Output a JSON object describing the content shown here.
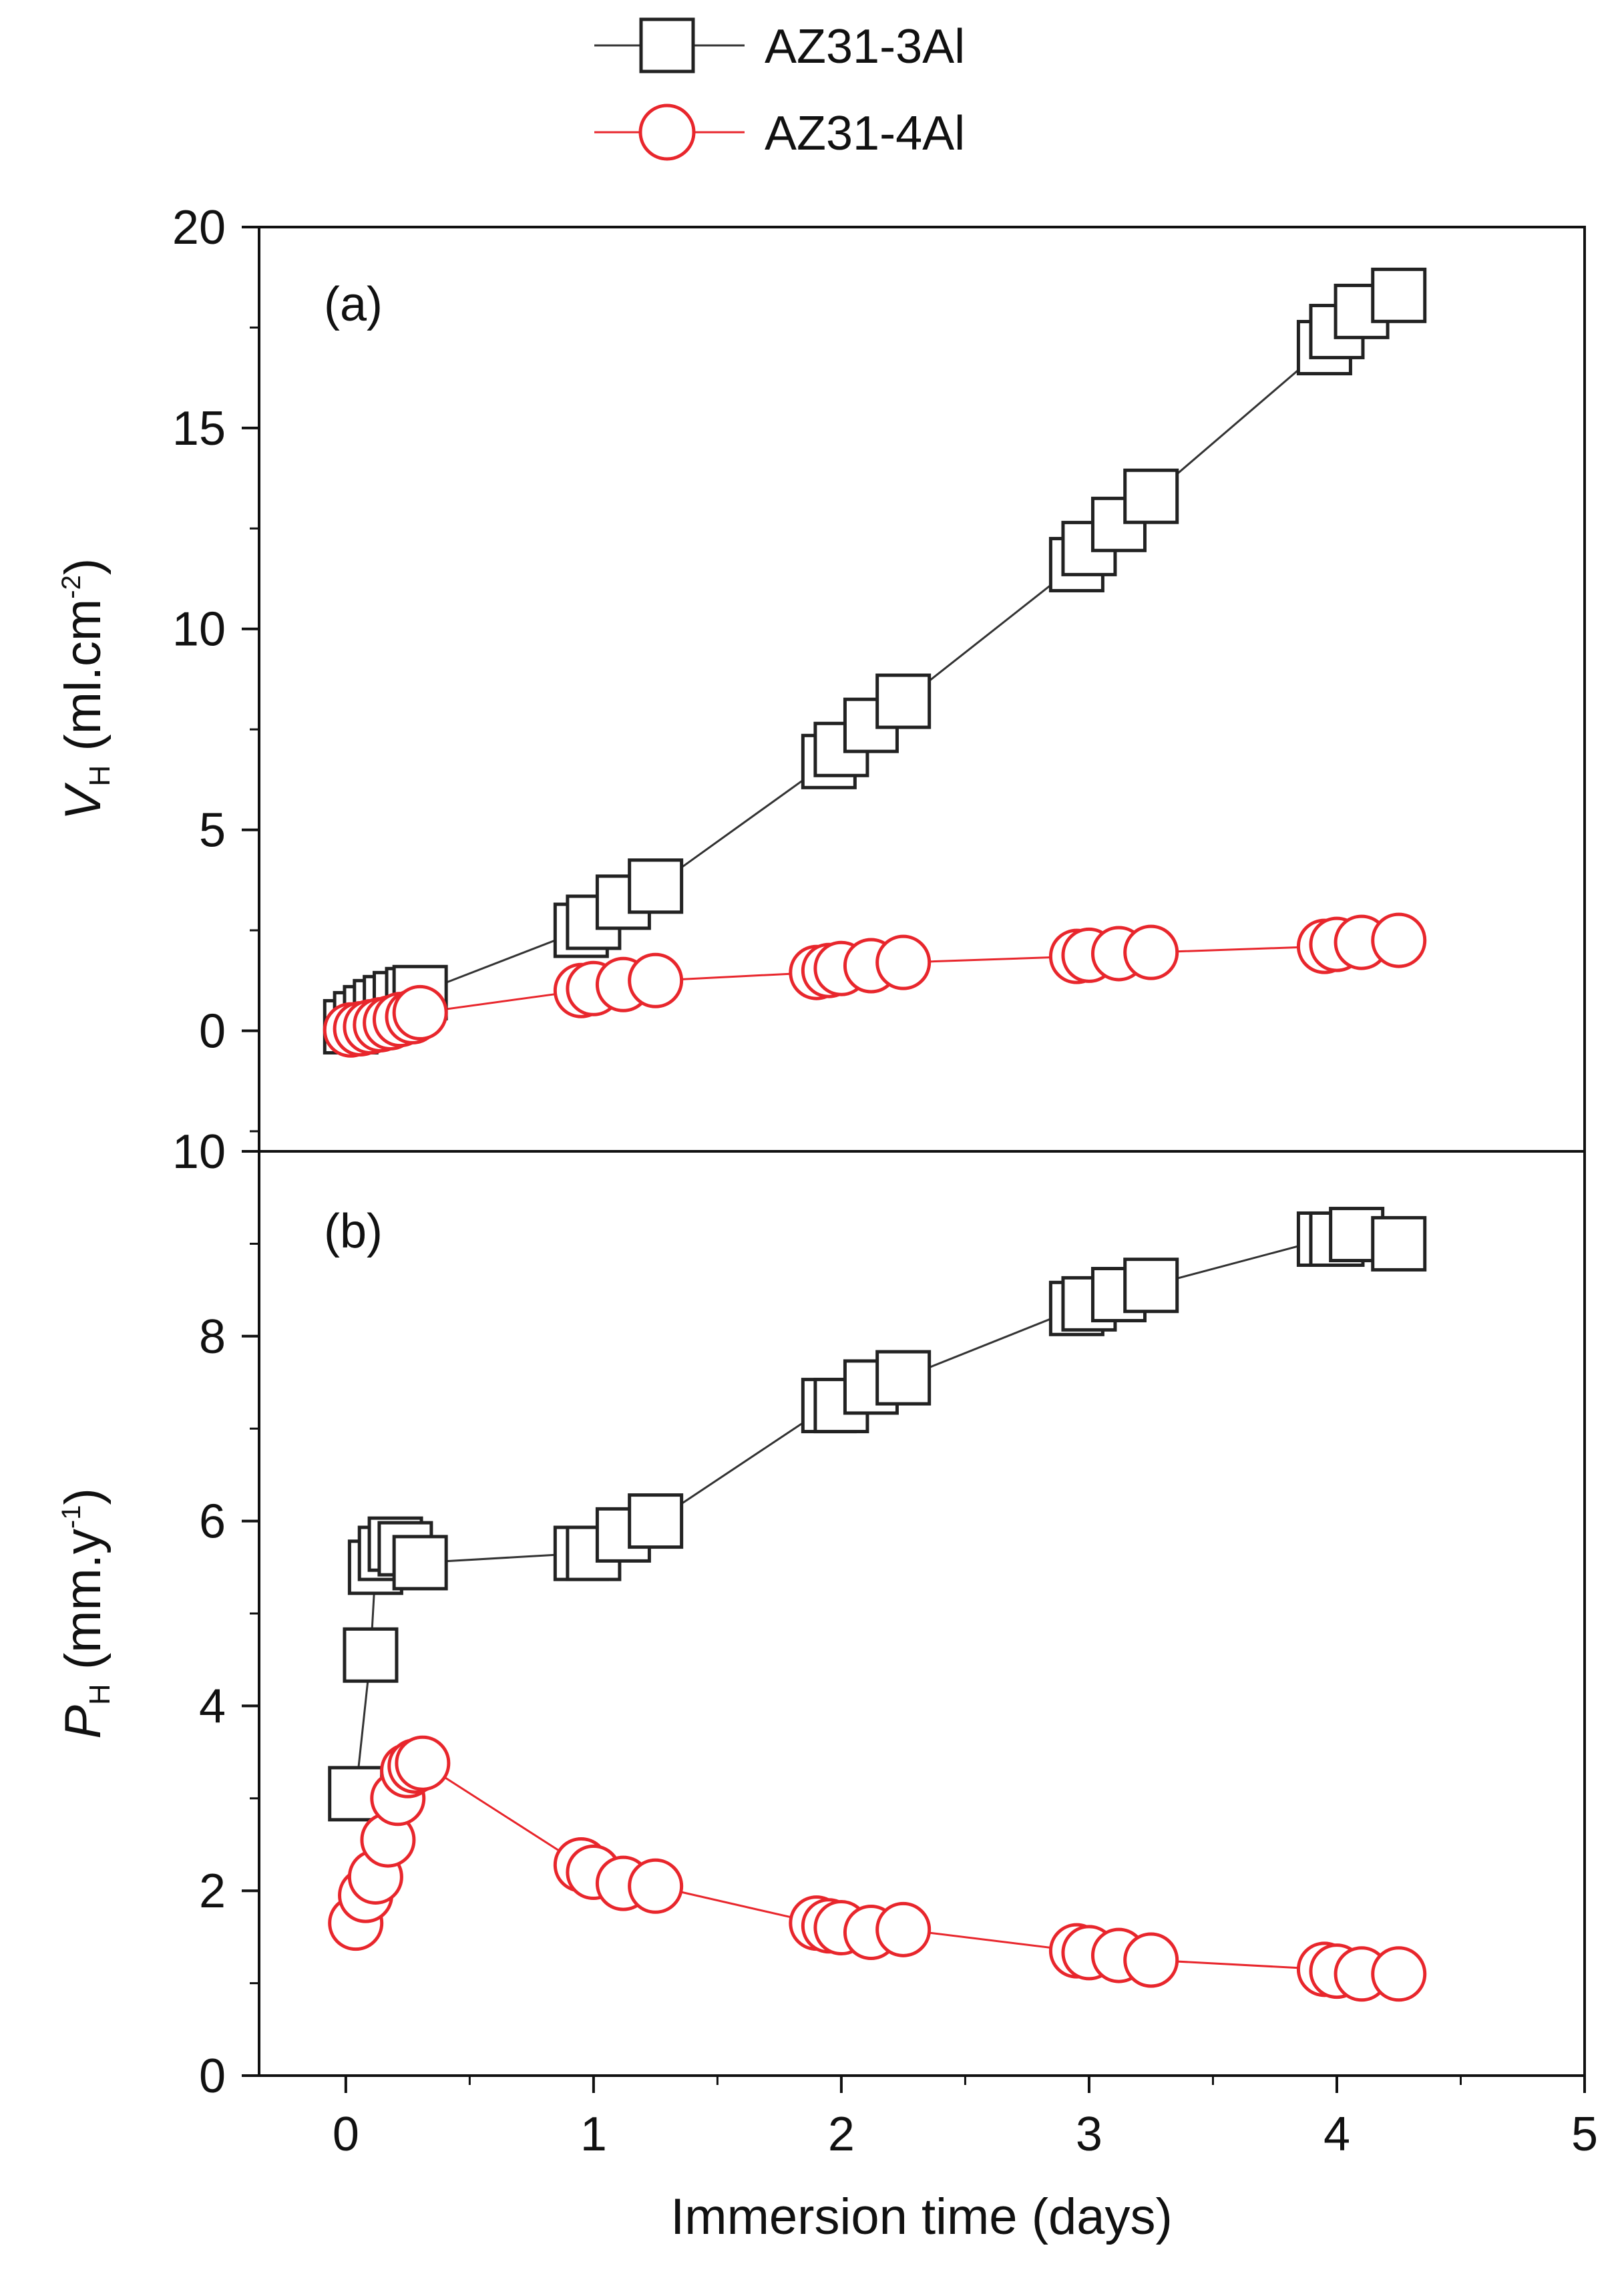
{
  "chart_data": {
    "type": "scatter",
    "x_label": "Immersion time (days)",
    "x_ticks": [
      "0",
      "1",
      "2",
      "3",
      "4",
      "5"
    ],
    "xlim": [
      -0.35,
      5.0
    ],
    "legend": {
      "placement": "top-center",
      "entries": [
        {
          "name": "AZ31-3Al",
          "marker": "square",
          "color": "#333333"
        },
        {
          "name": "AZ31-4Al",
          "marker": "circle",
          "color": "#e8262c"
        }
      ]
    },
    "panels": [
      {
        "id": "a",
        "label": "(a)",
        "ylabel_main": "V",
        "ylabel_sub": "H",
        "ylabel_unit": " (ml.cm",
        "ylabel_sup": "-2",
        "ylabel_close": ")",
        "ylim": [
          -3,
          20
        ],
        "y_ticks": [
          "20",
          "15",
          "10",
          "5",
          "0"
        ],
        "series": [
          {
            "name": "AZ31-3Al",
            "x": [
              0.02,
              0.06,
              0.1,
              0.14,
              0.18,
              0.22,
              0.27,
              0.3,
              0.95,
              1.0,
              1.12,
              1.25,
              1.95,
              2.0,
              2.12,
              2.25,
              2.95,
              3.0,
              3.12,
              3.25,
              3.95,
              4.0,
              4.1,
              4.25
            ],
            "y": [
              0.1,
              0.3,
              0.45,
              0.6,
              0.7,
              0.8,
              0.9,
              0.95,
              2.5,
              2.7,
              3.2,
              3.6,
              6.7,
              7.0,
              7.6,
              8.2,
              11.6,
              12.0,
              12.6,
              13.3,
              17.0,
              17.4,
              17.9,
              18.3
            ]
          },
          {
            "name": "AZ31-4Al",
            "x": [
              0.02,
              0.06,
              0.1,
              0.14,
              0.18,
              0.22,
              0.27,
              0.3,
              0.95,
              1.0,
              1.12,
              1.25,
              1.9,
              1.95,
              2.0,
              2.12,
              2.25,
              2.95,
              3.0,
              3.12,
              3.25,
              3.95,
              4.0,
              4.1,
              4.25
            ],
            "y": [
              0.02,
              0.05,
              0.1,
              0.15,
              0.2,
              0.28,
              0.35,
              0.45,
              1.0,
              1.05,
              1.15,
              1.25,
              1.45,
              1.5,
              1.55,
              1.62,
              1.7,
              1.85,
              1.88,
              1.92,
              1.95,
              2.1,
              2.15,
              2.2,
              2.25
            ]
          }
        ]
      },
      {
        "id": "b",
        "label": "(b)",
        "ylabel_main": "P",
        "ylabel_sub": "H",
        "ylabel_unit": " (mm.y",
        "ylabel_sup": "-1",
        "ylabel_close": ")",
        "ylim": [
          0,
          10
        ],
        "y_ticks": [
          "10",
          "8",
          "6",
          "4",
          "2",
          "0"
        ],
        "series": [
          {
            "name": "AZ31-3Al",
            "x": [
              0.04,
              0.1,
              0.12,
              0.16,
              0.2,
              0.24,
              0.3,
              0.95,
              1.0,
              1.12,
              1.25,
              1.95,
              2.0,
              2.12,
              2.25,
              2.95,
              3.0,
              3.12,
              3.25,
              3.95,
              4.0,
              4.08,
              4.25
            ],
            "y": [
              3.05,
              4.55,
              5.5,
              5.65,
              5.75,
              5.7,
              5.55,
              5.65,
              5.65,
              5.85,
              6.0,
              7.25,
              7.25,
              7.45,
              7.55,
              8.3,
              8.35,
              8.45,
              8.55,
              9.05,
              9.05,
              9.1,
              9.0
            ]
          },
          {
            "name": "AZ31-4Al",
            "x": [
              0.04,
              0.08,
              0.12,
              0.17,
              0.21,
              0.25,
              0.28,
              0.31,
              0.95,
              1.0,
              1.12,
              1.25,
              1.9,
              1.95,
              2.0,
              2.12,
              2.25,
              2.95,
              3.0,
              3.12,
              3.25,
              3.95,
              4.0,
              4.1,
              4.25
            ],
            "y": [
              1.65,
              1.95,
              2.15,
              2.55,
              3.0,
              3.3,
              3.35,
              3.38,
              2.28,
              2.2,
              2.08,
              2.05,
              1.65,
              1.62,
              1.6,
              1.55,
              1.58,
              1.35,
              1.33,
              1.3,
              1.25,
              1.15,
              1.13,
              1.1,
              1.1
            ]
          }
        ]
      }
    ]
  }
}
